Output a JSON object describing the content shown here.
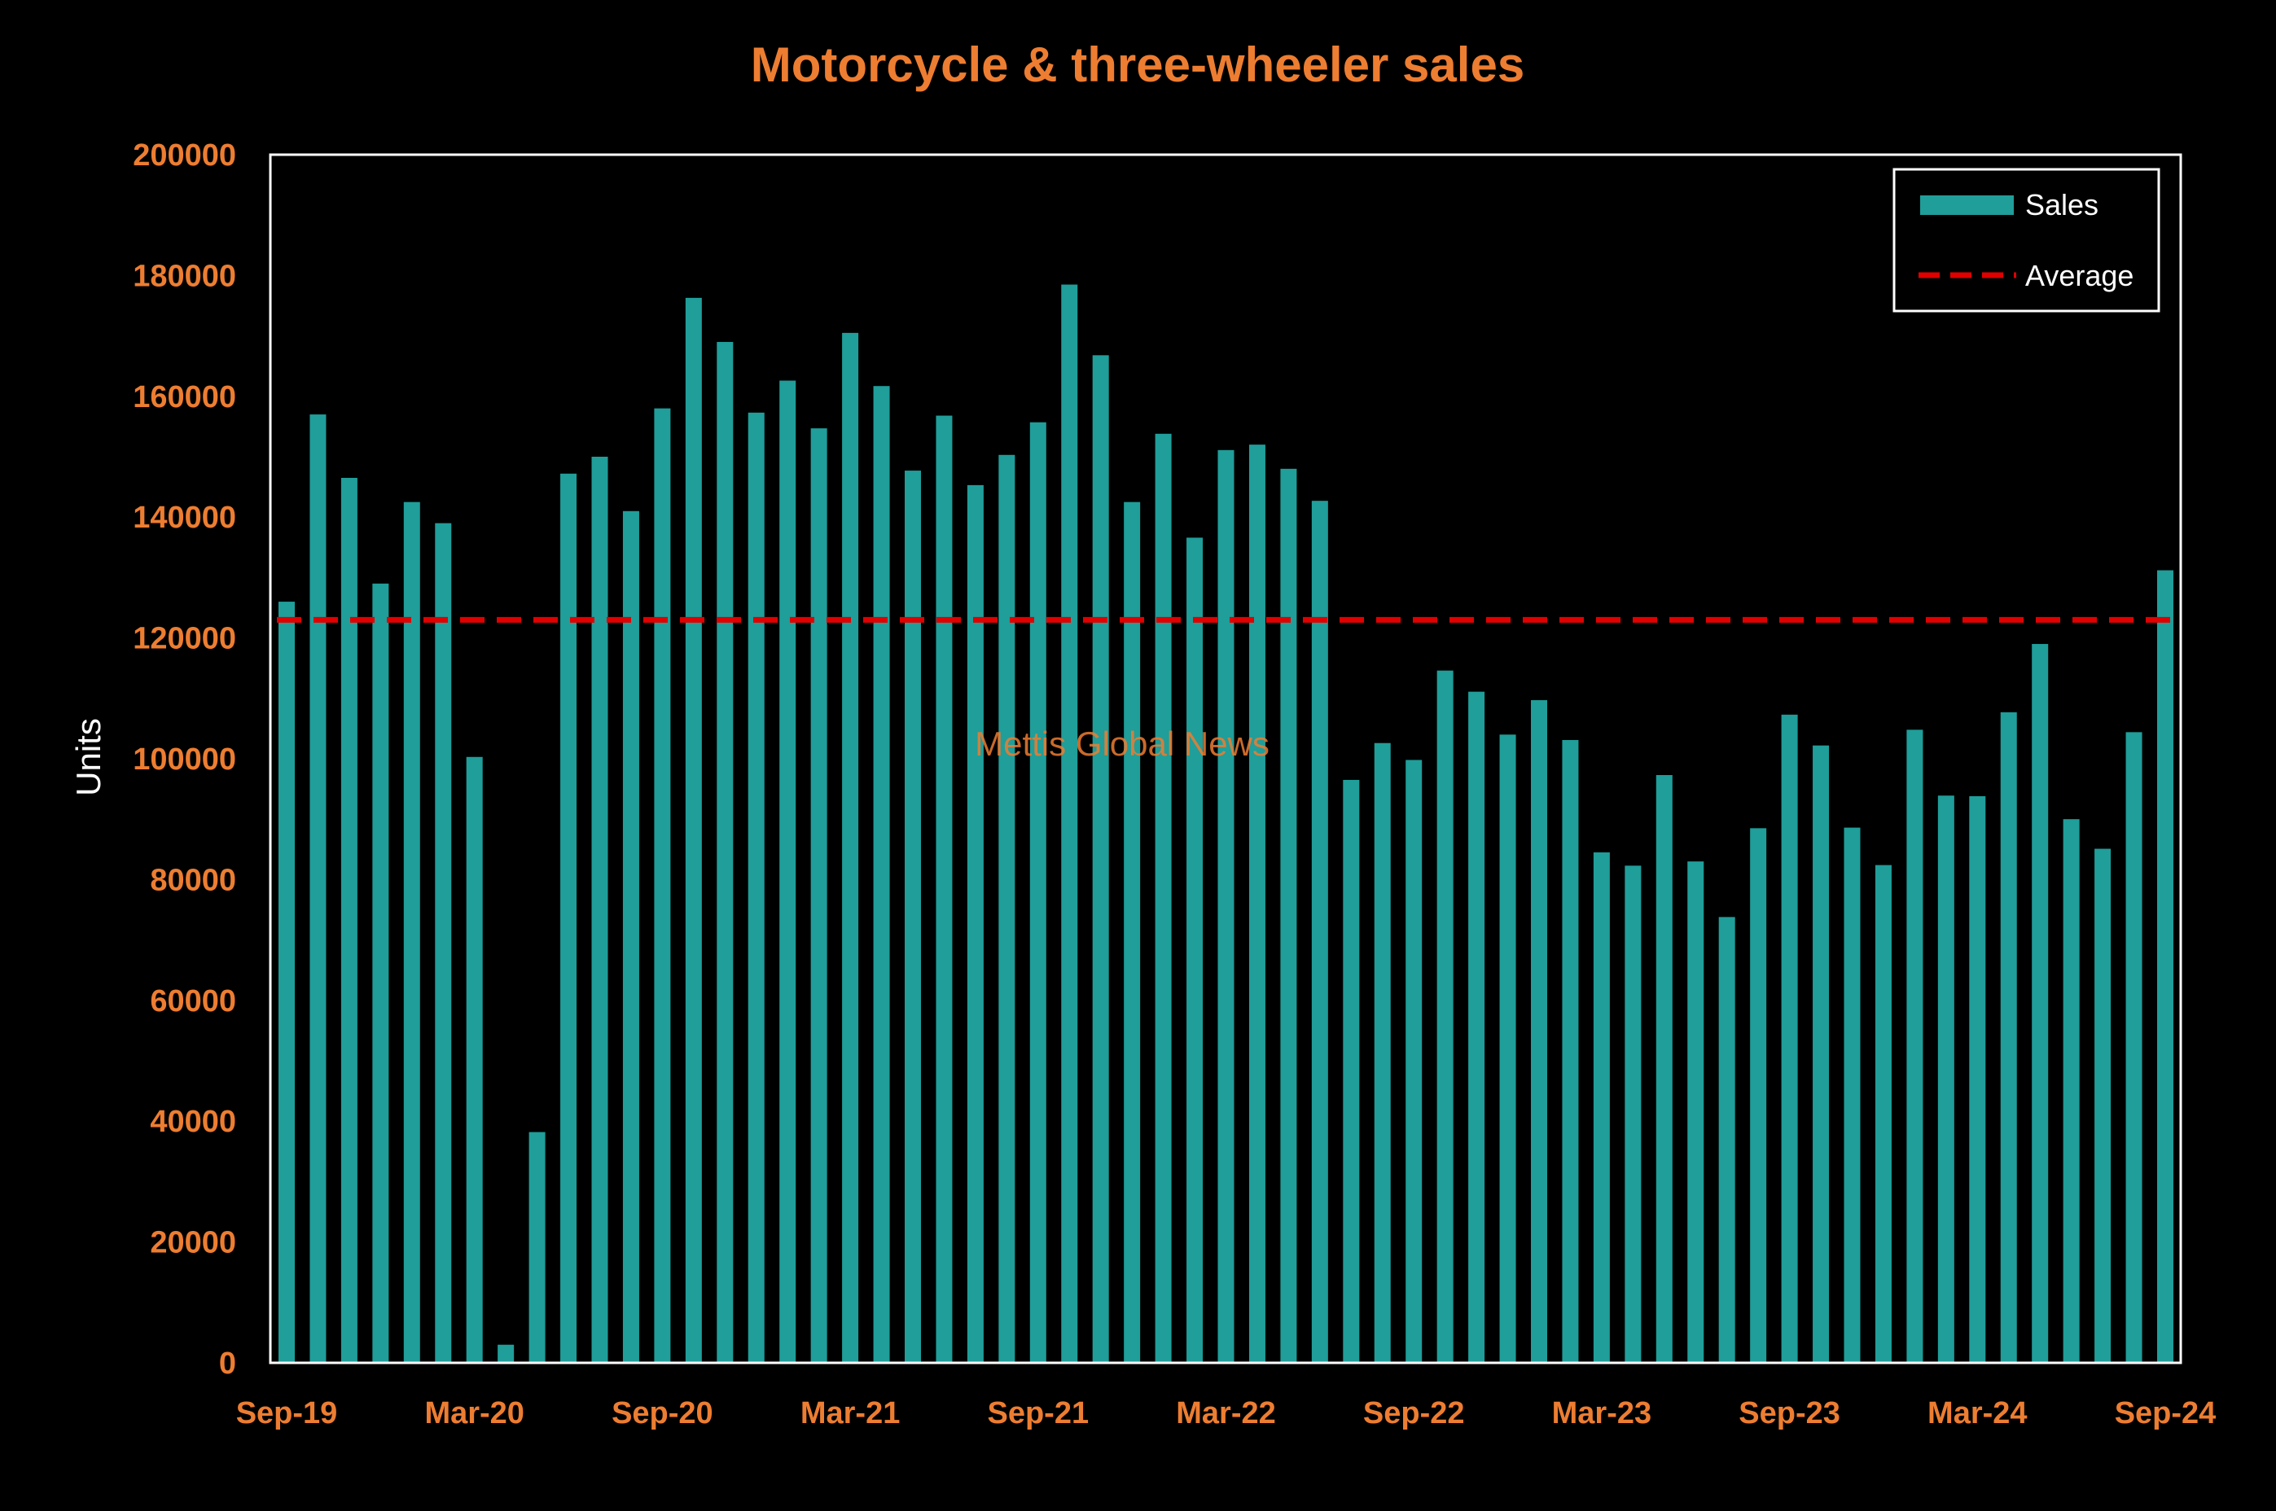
{
  "colors": {
    "background": "#000000",
    "accent": "#ED7D31",
    "bar": "#1F9E9A",
    "average_line": "#E00000",
    "frame": "#FFFFFF",
    "text_light": "#FFFFFF"
  },
  "watermark": "Mettis Global News",
  "chart_data": {
    "type": "bar",
    "title": "Motorcycle & three-wheeler sales",
    "xlabel": "",
    "ylabel": "Units",
    "ylim": [
      0,
      200000
    ],
    "yticks": [
      0,
      20000,
      40000,
      60000,
      80000,
      100000,
      120000,
      140000,
      160000,
      180000,
      200000
    ],
    "ytick_labels": [
      "0",
      "20000",
      "40000",
      "60000",
      "80000",
      "100000",
      "120000",
      "140000",
      "160000",
      "180000",
      "200000"
    ],
    "xtick_labels": [
      "Sep-19",
      "Mar-20",
      "Sep-20",
      "Mar-21",
      "Sep-21",
      "Mar-22",
      "Sep-22",
      "Mar-23",
      "Sep-23",
      "Mar-24",
      "Sep-24"
    ],
    "xtick_every": 6,
    "grid": false,
    "legend": {
      "position": "top-right",
      "entries": [
        {
          "label": "Sales",
          "marker": "bar"
        },
        {
          "label": "Average",
          "marker": "dashed-line"
        }
      ]
    },
    "categories": [
      "Sep-19",
      "Oct-19",
      "Nov-19",
      "Dec-19",
      "Jan-20",
      "Feb-20",
      "Mar-20",
      "Apr-20",
      "May-20",
      "Jun-20",
      "Jul-20",
      "Aug-20",
      "Sep-20",
      "Oct-20",
      "Nov-20",
      "Dec-20",
      "Jan-21",
      "Feb-21",
      "Mar-21",
      "Apr-21",
      "May-21",
      "Jun-21",
      "Jul-21",
      "Aug-21",
      "Sep-21",
      "Oct-21",
      "Nov-21",
      "Dec-21",
      "Jan-22",
      "Feb-22",
      "Mar-22",
      "Apr-22",
      "May-22",
      "Jun-22",
      "Jul-22",
      "Aug-22",
      "Sep-22",
      "Oct-22",
      "Nov-22",
      "Dec-22",
      "Jan-23",
      "Feb-23",
      "Mar-23",
      "Apr-23",
      "May-23",
      "Jun-23",
      "Jul-23",
      "Aug-23",
      "Sep-23",
      "Oct-23",
      "Nov-23",
      "Dec-23",
      "Jan-24",
      "Feb-24",
      "Mar-24",
      "Apr-24",
      "May-24",
      "Jun-24",
      "Jul-24",
      "Aug-24",
      "Sep-24"
    ],
    "series": [
      {
        "name": "Sales",
        "type": "bar",
        "values": [
          126000,
          157000,
          146500,
          129000,
          142500,
          139000,
          100300,
          3000,
          38200,
          147200,
          150000,
          141000,
          158000,
          176300,
          169000,
          157300,
          162600,
          154700,
          170500,
          161700,
          147700,
          156800,
          145300,
          150300,
          155700,
          178500,
          166800,
          142500,
          153800,
          136600,
          151100,
          152000,
          148000,
          142700,
          96500,
          102600,
          99800,
          114600,
          111100,
          104000,
          109700,
          103100,
          84500,
          82300,
          97300,
          83000,
          73800,
          88500,
          107300,
          102200,
          88600,
          82400,
          104800,
          93900,
          93800,
          107700,
          119000,
          90000,
          85100,
          104400,
          131200
        ]
      },
      {
        "name": "Average",
        "type": "line",
        "style": "dashed",
        "value": 123000
      }
    ]
  }
}
